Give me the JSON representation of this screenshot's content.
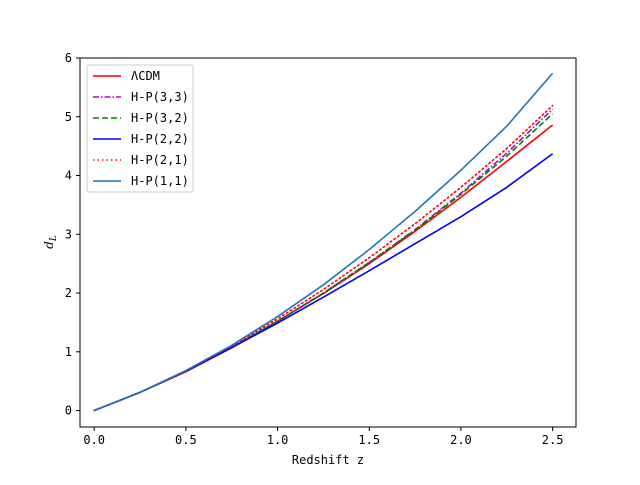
{
  "chart_data": {
    "type": "line",
    "title": "",
    "xlabel": "Redshift z",
    "ylabel_main": "d",
    "ylabel_sub": "L",
    "xlim": [
      -0.0775,
      2.6275
    ],
    "ylim": [
      -0.28,
      6.0
    ],
    "xticks": [
      0.0,
      0.5,
      1.0,
      1.5,
      2.0,
      2.5
    ],
    "xtick_labels": [
      "0.0",
      "0.5",
      "1.0",
      "1.5",
      "2.0",
      "2.5"
    ],
    "yticks": [
      0,
      1,
      2,
      3,
      4,
      5,
      6
    ],
    "ytick_labels": [
      "0",
      "1",
      "2",
      "3",
      "4",
      "5",
      "6"
    ],
    "legend_position": "upper-left",
    "grid": false,
    "x": [
      0.0,
      0.25,
      0.5,
      0.75,
      1.0,
      1.25,
      1.5,
      1.75,
      2.0,
      2.25,
      2.5
    ],
    "series": [
      {
        "name": "ΛCDM",
        "color": "#ff0000",
        "dash": "solid",
        "values": [
          0.0,
          0.31,
          0.66,
          1.07,
          1.52,
          1.99,
          2.5,
          3.05,
          3.63,
          4.24,
          4.86
        ]
      },
      {
        "name": "H-P(3,3)",
        "color": "#bf00bf",
        "dash": "dashdot",
        "values": [
          0.0,
          0.31,
          0.67,
          1.08,
          1.52,
          2.0,
          2.52,
          3.08,
          3.7,
          4.38,
          5.13
        ]
      },
      {
        "name": "H-P(3,2)",
        "color": "#008000",
        "dash": "dashed",
        "values": [
          0.0,
          0.31,
          0.67,
          1.08,
          1.52,
          2.0,
          2.52,
          3.07,
          3.68,
          4.33,
          5.05
        ]
      },
      {
        "name": "H-P(2,2)",
        "color": "#0000ff",
        "dash": "solid",
        "values": [
          0.0,
          0.31,
          0.67,
          1.07,
          1.49,
          1.93,
          2.38,
          2.84,
          3.3,
          3.8,
          4.37
        ]
      },
      {
        "name": "H-P(2,1)",
        "color": "#ff0000",
        "dash": "dotted",
        "values": [
          0.0,
          0.31,
          0.68,
          1.1,
          1.56,
          2.06,
          2.6,
          3.18,
          3.8,
          4.46,
          5.19
        ]
      },
      {
        "name": "H-P(1,1)",
        "color": "#1f77b4",
        "dash": "solid",
        "values": [
          0.0,
          0.31,
          0.68,
          1.11,
          1.6,
          2.14,
          2.74,
          3.39,
          4.09,
          4.84,
          5.74
        ]
      }
    ]
  }
}
